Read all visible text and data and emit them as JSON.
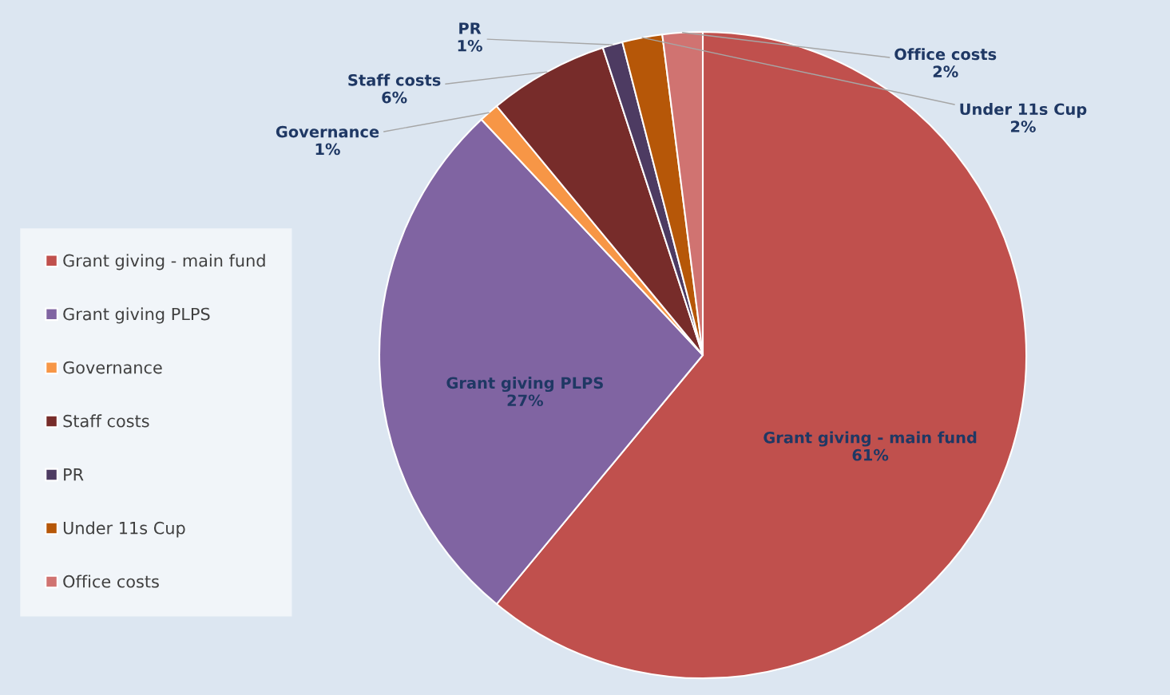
{
  "chart_data": {
    "type": "pie",
    "categories": [
      "Grant giving - main fund",
      "Grant giving PLPS",
      "Governance",
      "Staff costs",
      "PR",
      "Under 11s Cup",
      "Office costs"
    ],
    "values": [
      61,
      27,
      1,
      6,
      1,
      2,
      2
    ],
    "colors": [
      "#c0504d",
      "#8064a2",
      "#f79646",
      "#772c2a",
      "#4d3b62",
      "#b65708",
      "#d07371"
    ],
    "value_labels": [
      "61%",
      "27%",
      "1%",
      "6%",
      "1%",
      "2%",
      "2%"
    ],
    "legend": "left"
  }
}
